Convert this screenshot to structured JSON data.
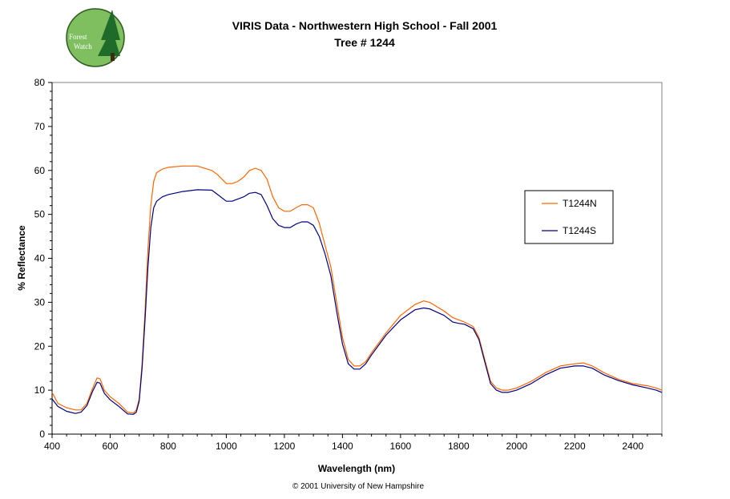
{
  "logo": {
    "line1": "Forest",
    "line2": "Watch"
  },
  "footer": "© 2001 University of New Hampshire",
  "colors": {
    "series_n": "#ff6600",
    "series_s": "#000080",
    "plot_border": "#808080",
    "logo_bg": "#7fbf5f",
    "logo_tree": "#1f6b2a"
  },
  "chart_data": {
    "type": "line",
    "title": "VIRIS Data - Northwestern High School - Fall 2001",
    "subtitle": "Tree # 1244",
    "xlabel": "Wavelength (nm)",
    "ylabel": "% Reflectance",
    "xlim": [
      400,
      2500
    ],
    "ylim": [
      0,
      80
    ],
    "xticks": [
      400,
      600,
      800,
      1000,
      1200,
      1400,
      1600,
      1800,
      2000,
      2200,
      2400
    ],
    "yticks": [
      0,
      10,
      20,
      30,
      40,
      50,
      60,
      70,
      80
    ],
    "grid": false,
    "legend_position": "right",
    "series": [
      {
        "name": "T1244N",
        "x": [
          400,
          420,
          450,
          480,
          500,
          520,
          540,
          555,
          565,
          580,
          600,
          630,
          660,
          680,
          690,
          700,
          710,
          720,
          730,
          740,
          750,
          760,
          780,
          800,
          850,
          900,
          950,
          970,
          1000,
          1020,
          1040,
          1060,
          1080,
          1100,
          1120,
          1140,
          1160,
          1180,
          1200,
          1220,
          1240,
          1260,
          1280,
          1300,
          1320,
          1340,
          1360,
          1380,
          1400,
          1420,
          1440,
          1460,
          1480,
          1500,
          1550,
          1600,
          1650,
          1680,
          1700,
          1750,
          1780,
          1800,
          1820,
          1850,
          1870,
          1890,
          1910,
          1930,
          1950,
          1970,
          2000,
          2050,
          2100,
          2150,
          2200,
          2230,
          2260,
          2300,
          2350,
          2400,
          2450,
          2480,
          2500
        ],
        "y": [
          9.5,
          7,
          6,
          5.5,
          5.5,
          7,
          10.5,
          12.8,
          12.6,
          10,
          8.5,
          7,
          5,
          4.8,
          5.5,
          8,
          16,
          28,
          42,
          52,
          57.5,
          59.5,
          60.3,
          60.7,
          61,
          61,
          60,
          59,
          57,
          57,
          57.5,
          58.5,
          60,
          60.5,
          60,
          58,
          54,
          51.5,
          50.7,
          50.7,
          51.5,
          52.2,
          52.2,
          51.5,
          48,
          43,
          38,
          30,
          22,
          17,
          15.5,
          15.5,
          16.5,
          18.5,
          23,
          27,
          29.5,
          30.3,
          30,
          28,
          26.5,
          26,
          25.5,
          24.5,
          22,
          17,
          12,
          10.5,
          10,
          10,
          10.5,
          12,
          14,
          15.5,
          16,
          16.2,
          15.5,
          14,
          12.5,
          11.5,
          11,
          10.5,
          10
        ]
      },
      {
        "name": "T1244S",
        "x": [
          400,
          420,
          450,
          480,
          500,
          520,
          540,
          555,
          565,
          580,
          600,
          630,
          660,
          680,
          690,
          700,
          710,
          720,
          730,
          740,
          750,
          760,
          780,
          800,
          850,
          900,
          950,
          970,
          1000,
          1020,
          1040,
          1060,
          1080,
          1100,
          1120,
          1140,
          1160,
          1180,
          1200,
          1220,
          1240,
          1260,
          1280,
          1300,
          1320,
          1340,
          1360,
          1380,
          1400,
          1420,
          1440,
          1460,
          1480,
          1500,
          1550,
          1600,
          1650,
          1680,
          1700,
          1750,
          1780,
          1800,
          1820,
          1850,
          1870,
          1890,
          1910,
          1930,
          1950,
          1970,
          2000,
          2050,
          2100,
          2150,
          2200,
          2230,
          2260,
          2300,
          2350,
          2400,
          2450,
          2480,
          2500
        ],
        "y": [
          8,
          6.3,
          5.2,
          4.7,
          5,
          6.5,
          9.8,
          11.8,
          11.6,
          9.3,
          7.8,
          6.3,
          4.6,
          4.5,
          5,
          7.5,
          15,
          26,
          38,
          47,
          51.5,
          53,
          54,
          54.5,
          55.2,
          55.6,
          55.5,
          54.5,
          53,
          53,
          53.5,
          54,
          54.8,
          55,
          54.5,
          52,
          49,
          47.5,
          47,
          47,
          47.8,
          48.3,
          48.3,
          47.5,
          45,
          41,
          36,
          28,
          20.5,
          16,
          14.8,
          14.8,
          16,
          18,
          22.5,
          26,
          28.3,
          28.7,
          28.5,
          27,
          25.5,
          25.2,
          25,
          24,
          21.5,
          16.5,
          11.5,
          10,
          9.5,
          9.5,
          10,
          11.5,
          13.5,
          15,
          15.5,
          15.5,
          15,
          13.5,
          12.2,
          11.2,
          10.5,
          10,
          9.5
        ]
      }
    ]
  }
}
